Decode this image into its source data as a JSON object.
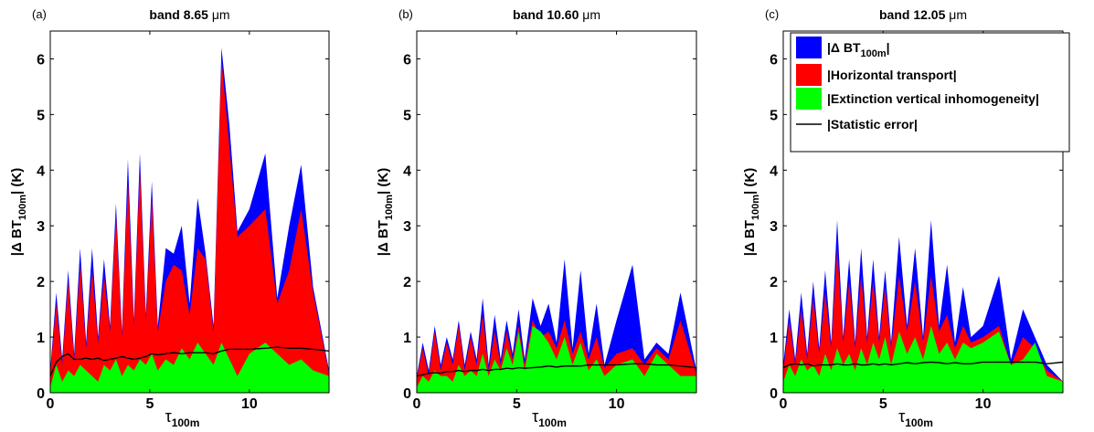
{
  "colors": {
    "delta": "#0000ff",
    "horizontal": "#ff0000",
    "extinction": "#00ff00",
    "statistic": "#000000"
  },
  "legend": {
    "items": [
      {
        "key": "delta",
        "label_main": "|Δ BT",
        "label_sub": "100m",
        "label_end": "|"
      },
      {
        "key": "horizontal",
        "label_main": "|Horizontal transport|"
      },
      {
        "key": "extinction",
        "label_main": "|Extinction vertical inhomogeneity|"
      },
      {
        "key": "statistic",
        "label_main": "|Statistic error|"
      }
    ]
  },
  "chart_data": [
    {
      "type": "area",
      "panel_label": "(a)",
      "title_main": "band 8.65 ",
      "title_unit": "μm",
      "xlabel_main": "τ",
      "xlabel_sub": "100m",
      "ylabel_main": "|Δ BT",
      "ylabel_sub": "100m",
      "ylabel_end": "| (K)",
      "xlim": [
        0,
        14
      ],
      "ylim": [
        0,
        6.5
      ],
      "xticks": [
        0,
        5,
        10
      ],
      "yticks": [
        0,
        1,
        2,
        3,
        4,
        5,
        6
      ],
      "x": [
        0.0,
        0.3,
        0.6,
        0.9,
        1.2,
        1.5,
        1.8,
        2.1,
        2.4,
        2.7,
        3.0,
        3.3,
        3.6,
        3.9,
        4.2,
        4.5,
        4.8,
        5.1,
        5.4,
        5.8,
        6.2,
        6.6,
        7.0,
        7.4,
        7.8,
        8.2,
        8.6,
        9.0,
        9.4,
        10.0,
        10.8,
        11.4,
        12.0,
        12.6,
        13.2,
        14.0
      ],
      "series": [
        {
          "key": "delta",
          "values": [
            0.4,
            1.8,
            0.6,
            2.2,
            0.7,
            2.6,
            0.9,
            2.6,
            1.0,
            2.4,
            1.2,
            3.4,
            1.1,
            4.2,
            1.3,
            4.3,
            1.4,
            3.8,
            1.2,
            2.6,
            2.5,
            3.0,
            1.6,
            3.5,
            2.5,
            1.2,
            6.2,
            4.8,
            2.9,
            3.3,
            4.3,
            1.7,
            3.0,
            4.1,
            1.9,
            0.4
          ]
        },
        {
          "key": "horizontal",
          "values": [
            0.35,
            1.6,
            0.5,
            2.0,
            0.6,
            2.3,
            0.8,
            2.2,
            0.9,
            2.1,
            1.1,
            3.2,
            1.0,
            3.8,
            1.2,
            4.0,
            1.3,
            3.5,
            1.1,
            2.0,
            2.3,
            2.2,
            1.4,
            2.6,
            2.4,
            1.1,
            6.0,
            4.4,
            2.8,
            3.0,
            3.3,
            1.6,
            2.2,
            3.3,
            1.8,
            0.35
          ]
        },
        {
          "key": "extinction",
          "values": [
            0.1,
            0.5,
            0.2,
            0.4,
            0.3,
            0.5,
            0.4,
            0.3,
            0.2,
            0.5,
            0.4,
            0.6,
            0.3,
            0.5,
            0.4,
            0.6,
            0.5,
            0.7,
            0.4,
            0.6,
            0.5,
            0.8,
            0.6,
            0.9,
            0.7,
            0.5,
            0.9,
            0.6,
            0.3,
            0.7,
            0.9,
            0.7,
            0.5,
            0.6,
            0.4,
            0.3
          ]
        },
        {
          "key": "statistic",
          "values": [
            0.3,
            0.55,
            0.65,
            0.7,
            0.6,
            0.6,
            0.62,
            0.6,
            0.62,
            0.58,
            0.6,
            0.62,
            0.65,
            0.62,
            0.6,
            0.62,
            0.65,
            0.7,
            0.68,
            0.7,
            0.72,
            0.7,
            0.72,
            0.72,
            0.72,
            0.7,
            0.75,
            0.78,
            0.78,
            0.78,
            0.8,
            0.82,
            0.8,
            0.8,
            0.78,
            0.75
          ]
        }
      ]
    },
    {
      "type": "area",
      "panel_label": "(b)",
      "title_main": "band 10.60 ",
      "title_unit": "μm",
      "xlabel_main": "τ",
      "xlabel_sub": "100m",
      "ylabel_main": "|Δ BT",
      "ylabel_sub": "100m",
      "ylabel_end": "| (K)",
      "xlim": [
        0,
        14
      ],
      "ylim": [
        0,
        6.5
      ],
      "xticks": [
        0,
        5,
        10
      ],
      "yticks": [
        0,
        1,
        2,
        3,
        4,
        5,
        6
      ],
      "x": [
        0.0,
        0.3,
        0.6,
        0.9,
        1.2,
        1.5,
        1.8,
        2.1,
        2.4,
        2.7,
        3.0,
        3.3,
        3.6,
        3.9,
        4.2,
        4.5,
        4.8,
        5.1,
        5.4,
        5.8,
        6.2,
        6.6,
        7.0,
        7.4,
        7.8,
        8.2,
        8.6,
        9.0,
        9.4,
        10.0,
        10.8,
        11.4,
        12.0,
        12.6,
        13.2,
        14.0
      ],
      "series": [
        {
          "key": "delta",
          "values": [
            0.3,
            0.9,
            0.4,
            1.2,
            0.5,
            1.0,
            0.6,
            1.3,
            0.5,
            1.1,
            0.6,
            1.7,
            0.5,
            1.4,
            0.6,
            1.3,
            0.7,
            1.5,
            0.6,
            1.7,
            1.2,
            1.6,
            0.9,
            2.4,
            0.8,
            2.2,
            0.7,
            1.6,
            0.5,
            1.3,
            2.3,
            0.6,
            0.9,
            0.7,
            1.8,
            0.4
          ]
        },
        {
          "key": "horizontal",
          "values": [
            0.25,
            0.8,
            0.3,
            1.1,
            0.4,
            0.9,
            0.5,
            1.2,
            0.4,
            1.0,
            0.5,
            1.4,
            0.4,
            1.1,
            0.5,
            1.1,
            0.6,
            1.2,
            0.5,
            1.3,
            1.0,
            1.1,
            0.8,
            1.3,
            0.7,
            1.1,
            0.6,
            1.0,
            0.45,
            0.7,
            0.8,
            0.5,
            0.8,
            0.6,
            1.3,
            0.35
          ]
        },
        {
          "key": "extinction",
          "values": [
            0.1,
            0.3,
            0.2,
            0.4,
            0.3,
            0.3,
            0.2,
            0.5,
            0.3,
            0.4,
            0.3,
            0.7,
            0.3,
            0.6,
            0.4,
            0.8,
            0.5,
            1.1,
            0.4,
            1.2,
            1.1,
            0.9,
            0.6,
            1.0,
            0.5,
            0.9,
            0.4,
            0.6,
            0.3,
            0.5,
            0.6,
            0.3,
            0.7,
            0.5,
            0.3,
            0.3
          ]
        },
        {
          "key": "statistic",
          "values": [
            0.3,
            0.32,
            0.35,
            0.36,
            0.35,
            0.38,
            0.38,
            0.4,
            0.38,
            0.4,
            0.4,
            0.42,
            0.4,
            0.42,
            0.42,
            0.44,
            0.43,
            0.45,
            0.44,
            0.45,
            0.46,
            0.48,
            0.46,
            0.48,
            0.48,
            0.48,
            0.5,
            0.5,
            0.5,
            0.5,
            0.52,
            0.52,
            0.5,
            0.5,
            0.48,
            0.45
          ]
        }
      ]
    },
    {
      "type": "area",
      "panel_label": "(c)",
      "title_main": "band 12.05 ",
      "title_unit": "μm",
      "xlabel_main": "τ",
      "xlabel_sub": "100m",
      "ylabel_main": "|Δ BT",
      "ylabel_sub": "100m",
      "ylabel_end": "| (K)",
      "xlim": [
        0,
        14
      ],
      "ylim": [
        0,
        6.5
      ],
      "xticks": [
        0,
        5,
        10
      ],
      "yticks": [
        0,
        1,
        2,
        3,
        4,
        5,
        6
      ],
      "x": [
        0.0,
        0.3,
        0.6,
        0.9,
        1.2,
        1.5,
        1.8,
        2.1,
        2.4,
        2.7,
        3.0,
        3.3,
        3.6,
        3.9,
        4.2,
        4.5,
        4.8,
        5.1,
        5.4,
        5.8,
        6.2,
        6.6,
        7.0,
        7.4,
        7.8,
        8.2,
        8.6,
        9.0,
        9.4,
        10.0,
        10.8,
        11.4,
        12.0,
        12.6,
        13.2,
        14.0
      ],
      "series": [
        {
          "key": "delta",
          "values": [
            0.5,
            1.5,
            0.6,
            1.8,
            0.7,
            2.0,
            0.8,
            2.2,
            0.9,
            3.1,
            1.0,
            2.4,
            0.9,
            2.6,
            1.0,
            2.4,
            1.0,
            2.2,
            0.9,
            2.8,
            1.2,
            2.6,
            1.0,
            3.1,
            1.2,
            2.3,
            0.9,
            1.9,
            1.0,
            1.2,
            2.1,
            0.6,
            1.5,
            1.0,
            0.5,
            0.2
          ]
        },
        {
          "key": "horizontal",
          "values": [
            0.4,
            1.3,
            0.5,
            1.5,
            0.6,
            1.7,
            0.7,
            1.8,
            0.8,
            2.6,
            0.9,
            2.0,
            0.8,
            2.1,
            0.9,
            2.0,
            0.9,
            1.9,
            0.8,
            2.1,
            1.1,
            2.0,
            0.9,
            2.1,
            1.1,
            1.4,
            0.8,
            1.2,
            0.9,
            1.0,
            1.2,
            0.5,
            1.0,
            0.8,
            0.4,
            0.2
          ]
        },
        {
          "key": "extinction",
          "values": [
            0.2,
            0.5,
            0.3,
            0.6,
            0.4,
            0.5,
            0.3,
            0.7,
            0.4,
            0.8,
            0.5,
            0.7,
            0.4,
            0.8,
            0.5,
            0.9,
            0.6,
            1.0,
            0.5,
            1.1,
            0.7,
            1.0,
            0.6,
            1.2,
            0.7,
            0.9,
            0.6,
            0.9,
            0.8,
            0.9,
            1.1,
            0.5,
            0.6,
            0.9,
            0.3,
            0.2
          ]
        },
        {
          "key": "statistic",
          "values": [
            0.45,
            0.5,
            0.52,
            0.5,
            0.52,
            0.48,
            0.5,
            0.5,
            0.5,
            0.52,
            0.5,
            0.5,
            0.52,
            0.5,
            0.5,
            0.52,
            0.5,
            0.52,
            0.5,
            0.52,
            0.54,
            0.52,
            0.54,
            0.55,
            0.54,
            0.52,
            0.54,
            0.52,
            0.52,
            0.55,
            0.55,
            0.55,
            0.55,
            0.55,
            0.52,
            0.55
          ]
        }
      ]
    }
  ]
}
